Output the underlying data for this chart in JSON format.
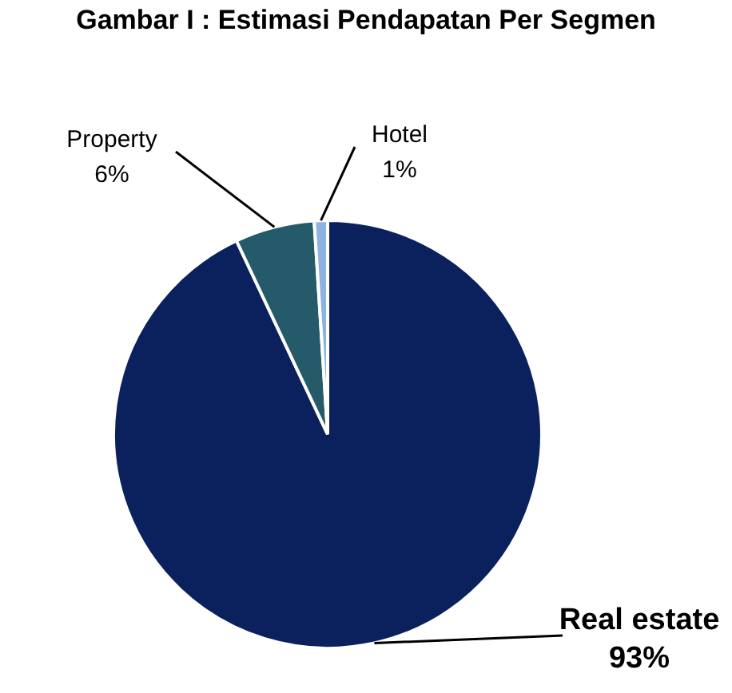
{
  "chart_data": {
    "type": "pie",
    "title": "Gambar I : Estimasi Pendapatan Per Segmen",
    "categories": [
      "Real estate",
      "Property",
      "Hotel"
    ],
    "values": [
      93,
      6,
      1
    ],
    "colors": [
      "#0b215e",
      "#245a6a",
      "#8db3e2"
    ],
    "value_labels": [
      "93%",
      "6%",
      "1%"
    ]
  }
}
